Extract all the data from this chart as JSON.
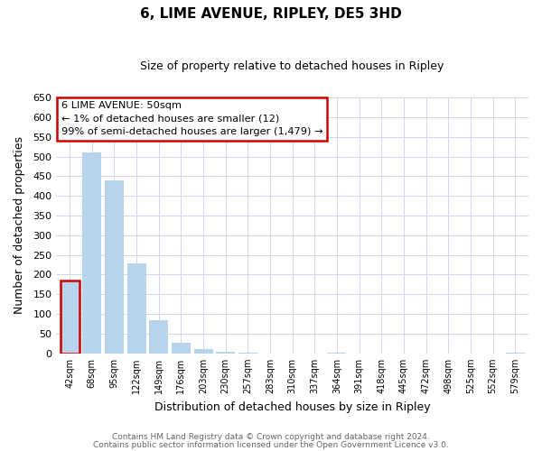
{
  "title": "6, LIME AVENUE, RIPLEY, DE5 3HD",
  "subtitle": "Size of property relative to detached houses in Ripley",
  "xlabel": "Distribution of detached houses by size in Ripley",
  "ylabel": "Number of detached properties",
  "bar_labels": [
    "42sqm",
    "68sqm",
    "95sqm",
    "122sqm",
    "149sqm",
    "176sqm",
    "203sqm",
    "230sqm",
    "257sqm",
    "283sqm",
    "310sqm",
    "337sqm",
    "364sqm",
    "391sqm",
    "418sqm",
    "445sqm",
    "472sqm",
    "498sqm",
    "525sqm",
    "552sqm",
    "579sqm"
  ],
  "bar_values": [
    185,
    510,
    440,
    228,
    85,
    28,
    12,
    3,
    1,
    0,
    0,
    0,
    1,
    0,
    0,
    0,
    0,
    0,
    0,
    0,
    1
  ],
  "bar_color": "#b8d4ec",
  "highlight_bar_index": 0,
  "highlight_color": "#cc0000",
  "ylim": [
    0,
    650
  ],
  "yticks": [
    0,
    50,
    100,
    150,
    200,
    250,
    300,
    350,
    400,
    450,
    500,
    550,
    600,
    650
  ],
  "annotation_title": "6 LIME AVENUE: 50sqm",
  "annotation_line1": "← 1% of detached houses are smaller (12)",
  "annotation_line2": "99% of semi-detached houses are larger (1,479) →",
  "annotation_box_color": "#ffffff",
  "annotation_border_color": "#cc0000",
  "footer_line1": "Contains HM Land Registry data © Crown copyright and database right 2024.",
  "footer_line2": "Contains public sector information licensed under the Open Government Licence v3.0.",
  "bg_color": "#ffffff",
  "grid_color": "#d0d8e8"
}
